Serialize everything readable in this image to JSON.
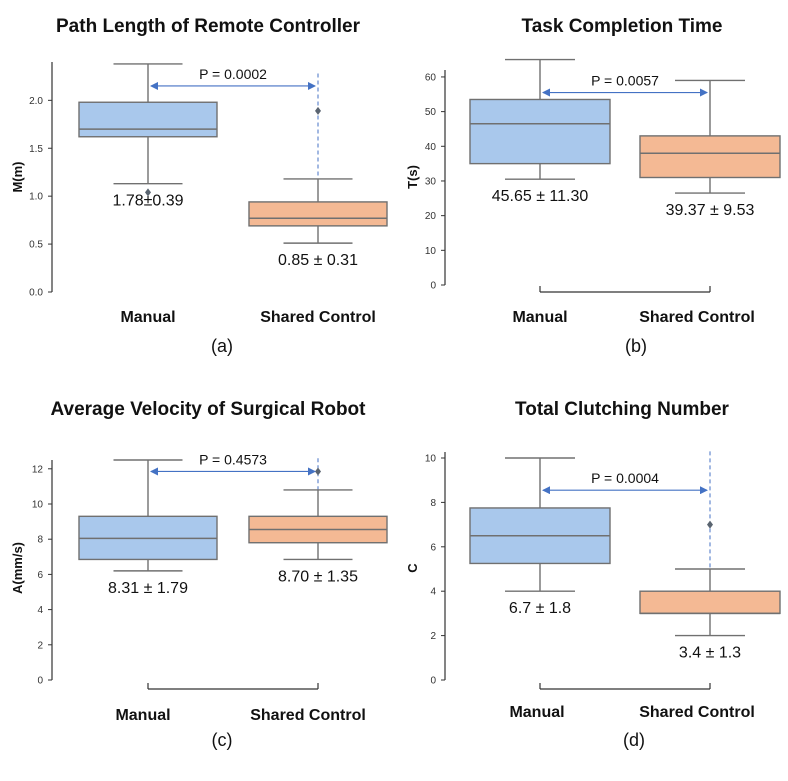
{
  "colors": {
    "manual_fill": "#a9c8ec",
    "shared_fill": "#f4b994",
    "box_edge": "#707070",
    "arrow": "#4472c4",
    "axis": "#333333"
  },
  "chart_data": [
    {
      "id": "a",
      "type": "box",
      "title": "Path Length of Remote Controller",
      "ylabel": "M(m)",
      "caption": "(a)",
      "ylim": [
        0,
        2.4
      ],
      "yticks": [
        "0.0",
        "0.5",
        "1.0",
        "1.5",
        "2.0"
      ],
      "ytick_values": [
        0,
        0.5,
        1.0,
        1.5,
        2.0
      ],
      "categories": [
        "Manual",
        "Shared Control"
      ],
      "boxes": [
        {
          "name": "Manual",
          "q1": 1.62,
          "median": 1.7,
          "q3": 1.98,
          "whisker_low": 1.13,
          "whisker_high": 2.38,
          "outliers": [
            1.04
          ],
          "label": "1.78±0.39"
        },
        {
          "name": "Shared Control",
          "q1": 0.69,
          "median": 0.77,
          "q3": 0.94,
          "whisker_low": 0.51,
          "whisker_high": 1.18,
          "outliers": [
            1.89
          ],
          "label": "0.85 ± 0.31"
        }
      ],
      "p_value": "P = 0.0002",
      "p_arrow_y": 2.15,
      "dashline_to": 2.28
    },
    {
      "id": "b",
      "type": "box",
      "title": "Task Completion Time",
      "ylabel": "T(s)",
      "caption": "(b)",
      "ylim": [
        0,
        62
      ],
      "yticks": [
        "0",
        "10",
        "20",
        "30",
        "40",
        "50",
        "60"
      ],
      "ytick_values": [
        0,
        10,
        20,
        30,
        40,
        50,
        60
      ],
      "bottom_spine": true,
      "categories": [
        "Manual",
        "Shared Control"
      ],
      "boxes": [
        {
          "name": "Manual",
          "q1": 35.0,
          "median": 46.5,
          "q3": 53.5,
          "whisker_low": 30.5,
          "whisker_high": 65.0,
          "outliers": [],
          "label": "45.65 ± 11.30"
        },
        {
          "name": "Shared Control",
          "q1": 31.0,
          "median": 38.0,
          "q3": 43.0,
          "whisker_low": 26.5,
          "whisker_high": 59.0,
          "outliers": [],
          "label": "39.37 ± 9.53"
        }
      ],
      "p_value": "P = 0.0057",
      "p_arrow_y": 55.5
    },
    {
      "id": "c",
      "type": "box",
      "title": "Average Velocity of Surgical Robot",
      "ylabel": "A(mm/s)",
      "caption": "(c)",
      "ylim": [
        0,
        12.5
      ],
      "yticks": [
        "0",
        "2",
        "4",
        "6",
        "8",
        "10",
        "12"
      ],
      "ytick_values": [
        0,
        2,
        4,
        6,
        8,
        10,
        12
      ],
      "bottom_spine": true,
      "categories": [
        "Manual",
        "Shared Control"
      ],
      "boxes": [
        {
          "name": "Manual",
          "q1": 6.85,
          "median": 8.05,
          "q3": 9.3,
          "whisker_low": 6.2,
          "whisker_high": 12.5,
          "outliers": [],
          "label": "8.31 ± 1.79"
        },
        {
          "name": "Shared Control",
          "q1": 7.8,
          "median": 8.55,
          "q3": 9.3,
          "whisker_low": 6.85,
          "whisker_high": 10.8,
          "outliers": [
            11.85
          ],
          "label": "8.70 ± 1.35"
        }
      ],
      "p_value": "P = 0.4573",
      "p_arrow_y": 11.85,
      "dashline_to": 12.6
    },
    {
      "id": "d",
      "type": "box",
      "title": "Total Clutching Number",
      "ylabel": "C",
      "caption": "(d)",
      "ylim": [
        0,
        10
      ],
      "yticks": [
        "0",
        "2",
        "4",
        "6",
        "8",
        "10"
      ],
      "ytick_values": [
        0,
        2,
        4,
        6,
        8,
        10
      ],
      "bottom_spine": true,
      "categories": [
        "Manual",
        "Shared Control"
      ],
      "boxes": [
        {
          "name": "Manual",
          "q1": 5.25,
          "median": 6.5,
          "q3": 7.75,
          "whisker_low": 4.0,
          "whisker_high": 10.0,
          "outliers": [],
          "label": "6.7 ± 1.8"
        },
        {
          "name": "Shared Control",
          "q1": 3.0,
          "median": 3.0,
          "q3": 4.0,
          "whisker_low": 2.0,
          "whisker_high": 5.0,
          "outliers": [
            7.0
          ],
          "label": "3.4 ± 1.3"
        }
      ],
      "p_value": "P = 0.0004",
      "p_arrow_y": 8.55,
      "dashline_to": 10.3
    }
  ]
}
